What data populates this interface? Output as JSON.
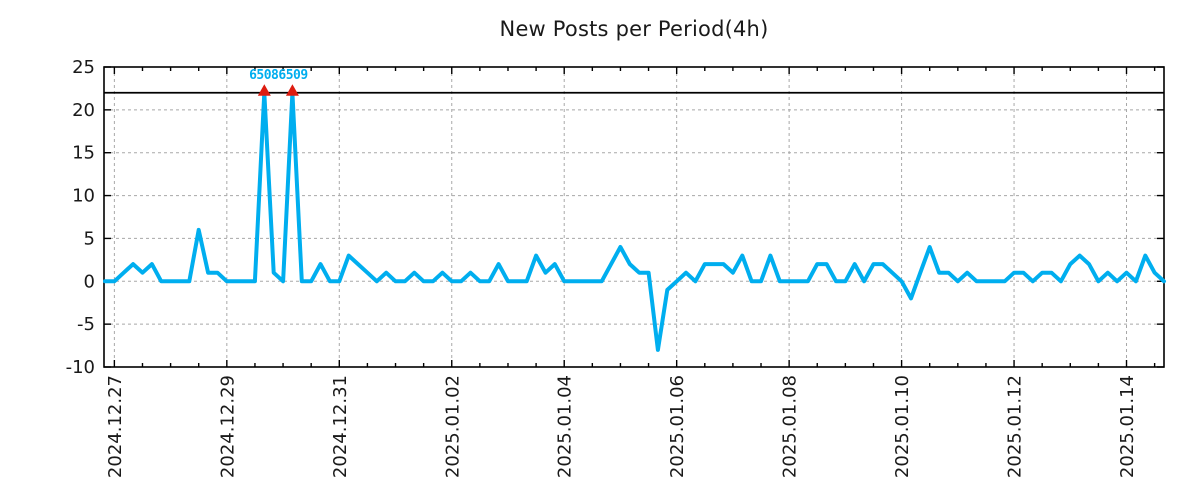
{
  "chart_data": {
    "type": "line",
    "title": "New Posts per Period(4h)",
    "period_hours": 4,
    "x_tick_labels": [
      "2024.12.27",
      "2024.12.29",
      "2024.12.31",
      "2025.01.02",
      "2025.01.04",
      "2025.01.06",
      "2025.01.08",
      "2025.01.10",
      "2025.01.12",
      "2025.01.14"
    ],
    "x_tick_indices": [
      1,
      13,
      25,
      37,
      49,
      61,
      73,
      85,
      97,
      109
    ],
    "minor_tick_every_points": 3,
    "values": [
      0,
      0,
      1,
      2,
      1,
      2,
      0,
      0,
      0,
      0,
      6,
      1,
      1,
      0,
      0,
      0,
      0,
      22,
      1,
      0,
      22,
      0,
      0,
      2,
      0,
      0,
      3,
      2,
      1,
      0,
      1,
      0,
      0,
      1,
      0,
      0,
      1,
      0,
      0,
      1,
      0,
      0,
      2,
      0,
      0,
      0,
      3,
      1,
      2,
      0,
      0,
      0,
      0,
      0,
      2,
      4,
      2,
      1,
      1,
      -8,
      -1,
      0,
      1,
      0,
      2,
      2,
      2,
      1,
      3,
      0,
      0,
      3,
      0,
      0,
      0,
      0,
      2,
      2,
      0,
      0,
      2,
      0,
      2,
      2,
      1,
      0,
      -2,
      1,
      4,
      1,
      1,
      0,
      1,
      0,
      0,
      0,
      0,
      1,
      1,
      0,
      1,
      1,
      0,
      2,
      3,
      2,
      0,
      1,
      0,
      1,
      0,
      3,
      1,
      0
    ],
    "ylim": [
      -10,
      25
    ],
    "yticks": [
      25,
      20,
      15,
      10,
      5,
      0,
      -5,
      -10
    ],
    "ref_line_y": 22,
    "annotation": {
      "label": "65086509",
      "marker_point_indices": [
        17,
        20
      ],
      "marker_value": 22
    },
    "grid": true,
    "legend": false,
    "colors": {
      "line": "#00aeef",
      "marker": "#dd1c10",
      "grid": "#a8a8a8",
      "axis": "#000000",
      "ref_line": "#000000",
      "annotation": "#00aeef",
      "text": "#1a1a1a"
    }
  }
}
